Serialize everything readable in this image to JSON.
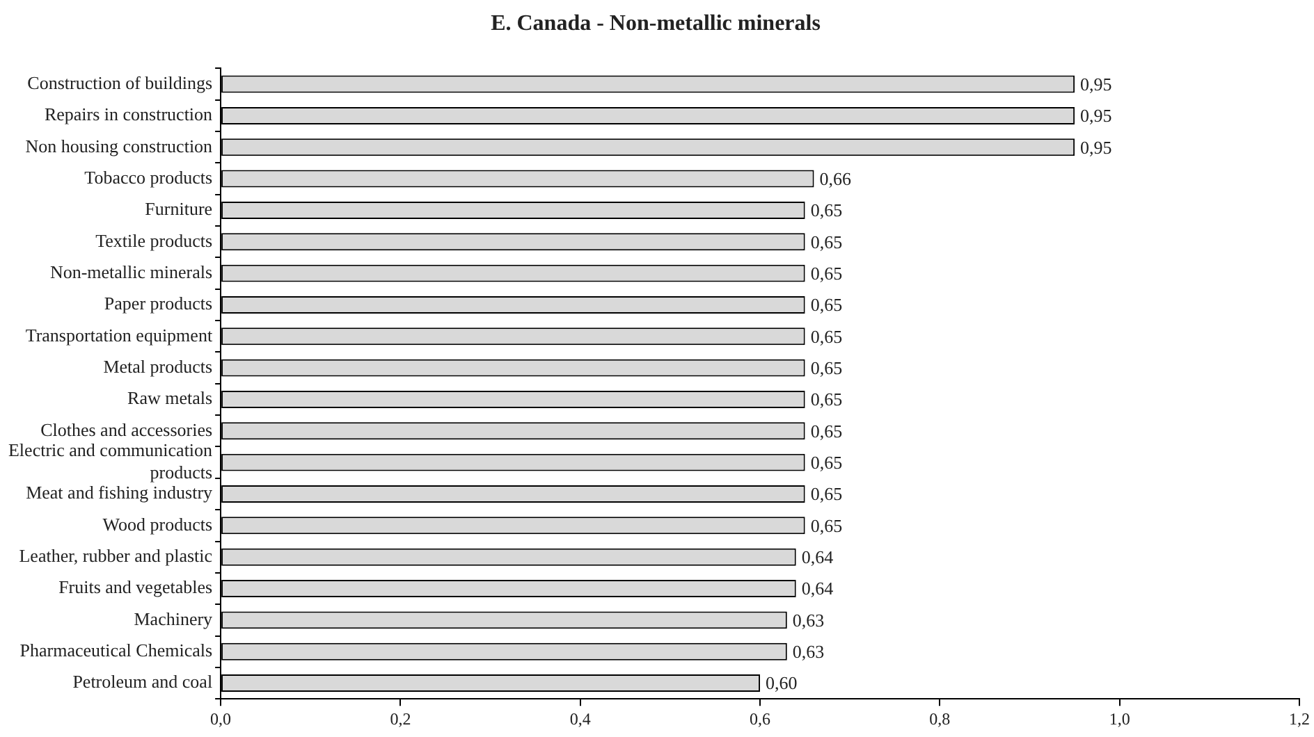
{
  "chart_data": {
    "type": "bar",
    "orientation": "horizontal",
    "title": "E. Canada - Non-metallic minerals",
    "categories": [
      "Construction of buildings",
      "Repairs in construction",
      "Non housing construction",
      "Tobacco products",
      "Furniture",
      "Textile products",
      "Non-metallic minerals",
      "Paper products",
      "Transportation equipment",
      "Metal products",
      "Raw metals",
      "Clothes and accessories",
      "Electric and communication products",
      "Meat and fishing industry",
      "Wood products",
      "Leather, rubber and plastic",
      "Fruits and vegetables",
      "Machinery",
      "Pharmaceutical Chemicals",
      "Petroleum and coal"
    ],
    "values": [
      0.95,
      0.95,
      0.95,
      0.66,
      0.65,
      0.65,
      0.65,
      0.65,
      0.65,
      0.65,
      0.65,
      0.65,
      0.65,
      0.65,
      0.65,
      0.64,
      0.64,
      0.63,
      0.63,
      0.6
    ],
    "value_labels": [
      "0,95",
      "0,95",
      "0,95",
      "0,66",
      "0,65",
      "0,65",
      "0,65",
      "0,65",
      "0,65",
      "0,65",
      "0,65",
      "0,65",
      "0,65",
      "0,65",
      "0,65",
      "0,64",
      "0,64",
      "0,63",
      "0,63",
      "0,60"
    ],
    "color": "#d9d9d9",
    "xlim": [
      0,
      1.2
    ],
    "xticks": [
      {
        "value": 0,
        "label": "0,0"
      },
      {
        "value": 0.2,
        "label": "0,2"
      },
      {
        "value": 0.4,
        "label": "0,4"
      },
      {
        "value": 0.6,
        "label": "0,6"
      },
      {
        "value": 0.8,
        "label": "0,8"
      },
      {
        "value": 1.0,
        "label": "1,0"
      },
      {
        "value": 1.2,
        "label": "1,2"
      }
    ],
    "grid": false,
    "legend": false
  }
}
